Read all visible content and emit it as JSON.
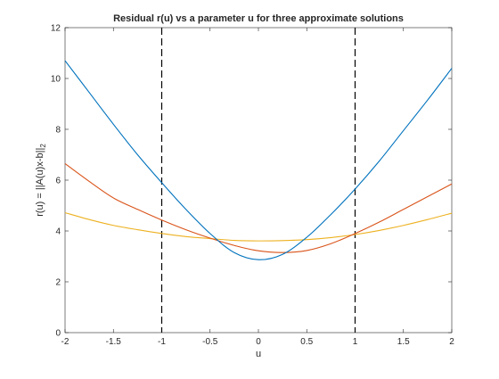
{
  "chart_data": {
    "type": "line",
    "title": "Residual r(u) vs a parameter u for three approximate solutions",
    "xlabel": "u",
    "ylabel": "r(u) = ||A(u)x-b||",
    "ylabel_subscript": "2",
    "xlim": [
      -2,
      2
    ],
    "ylim": [
      0,
      12
    ],
    "xticks": [
      -2,
      -1.5,
      -1,
      -0.5,
      0,
      0.5,
      1,
      1.5,
      2
    ],
    "xtick_labels": [
      "-2",
      "-1.5",
      "-1",
      "-0.5",
      "0",
      "0.5",
      "1",
      "1.5",
      "2"
    ],
    "yticks": [
      0,
      2,
      4,
      6,
      8,
      10,
      12
    ],
    "ytick_labels": [
      "0",
      "2",
      "4",
      "6",
      "8",
      "10",
      "12"
    ],
    "grid": false,
    "legend": "none",
    "vertical_lines": [
      {
        "x": -1,
        "style": "dashed",
        "color": "#000000"
      },
      {
        "x": 1,
        "style": "dashed",
        "color": "#000000"
      }
    ],
    "x": [
      -2,
      -1.75,
      -1.5,
      -1.25,
      -1,
      -0.75,
      -0.5,
      -0.25,
      0,
      0.25,
      0.5,
      0.75,
      1,
      1.25,
      1.5,
      1.75,
      2
    ],
    "series": [
      {
        "color": "#0072BD",
        "values": [
          10.7,
          9.45,
          8.2,
          7.0,
          5.9,
          4.85,
          3.9,
          3.15,
          2.87,
          3.08,
          3.75,
          4.65,
          5.65,
          6.75,
          7.95,
          9.15,
          10.4
        ]
      },
      {
        "color": "#D95319",
        "values": [
          6.65,
          5.95,
          5.3,
          4.85,
          4.43,
          4.05,
          3.72,
          3.43,
          3.22,
          3.15,
          3.23,
          3.5,
          3.9,
          4.35,
          4.85,
          5.35,
          5.85
        ]
      },
      {
        "color": "#EDB120",
        "values": [
          4.72,
          4.45,
          4.22,
          4.05,
          3.9,
          3.78,
          3.7,
          3.63,
          3.61,
          3.62,
          3.66,
          3.74,
          3.86,
          4.02,
          4.22,
          4.45,
          4.7
        ]
      }
    ]
  }
}
